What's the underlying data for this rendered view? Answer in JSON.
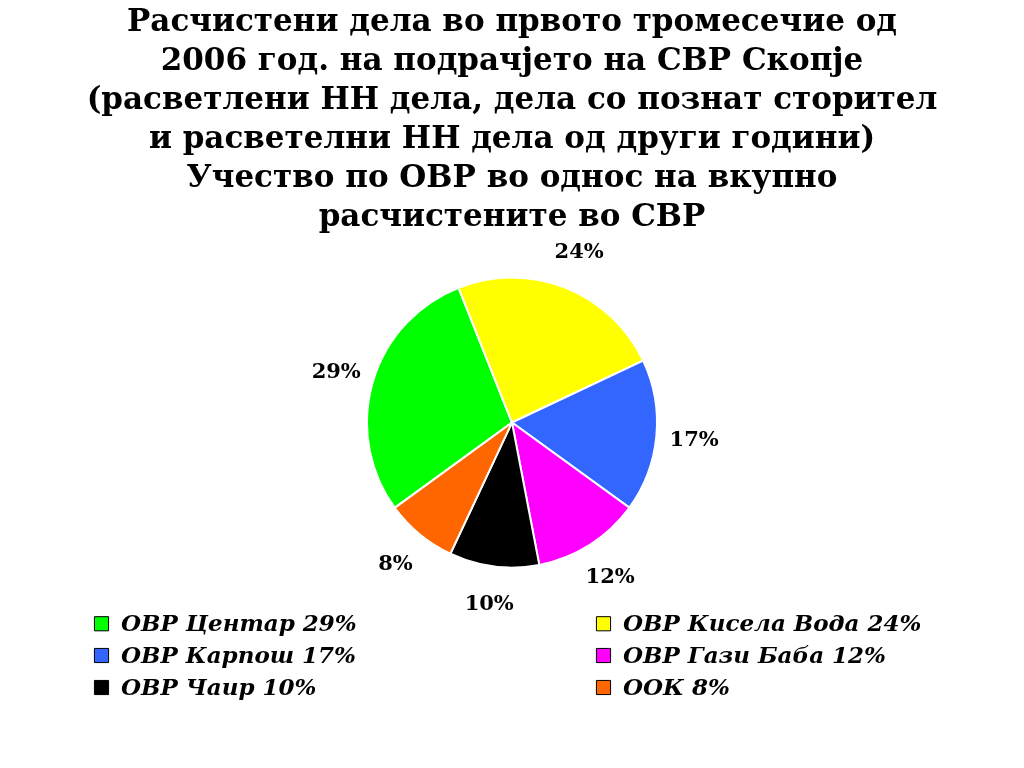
{
  "chart_data": {
    "type": "pie",
    "title": "Расчистени дела во првото тромесечие од\n2006 год. на подрачјето на СВР Скопје\n(расветлени НН дела, дела со познат сторител\nи расветелни НН дела од други години)\nУчество по ОВР  во однос на вкупно\nрасчистените во СВР",
    "categories": [
      "ОВР Центар 29%",
      "ОВР Кисела Вода 24%",
      "ОВР Карпош 17%",
      "ОВР Гази Баба 12%",
      "ОВР Чаир 10%",
      "ООК 8%"
    ],
    "values": [
      29,
      24,
      17,
      12,
      10,
      8
    ],
    "colors": [
      "#00ff00",
      "#ffff00",
      "#3366ff",
      "#ff00ff",
      "#000000",
      "#ff6600"
    ],
    "value_labels": [
      "29%",
      "24%",
      "17%",
      "12%",
      "10%",
      "8%"
    ],
    "legend": "bottom"
  }
}
